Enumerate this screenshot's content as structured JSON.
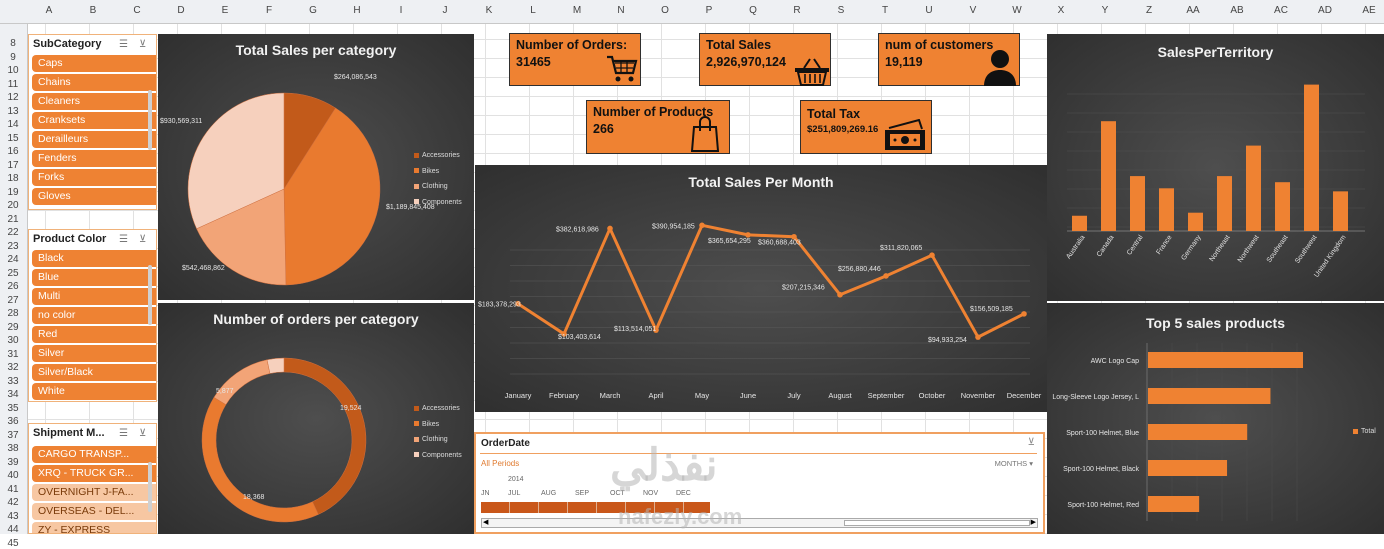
{
  "sheet": {
    "columns": [
      "A",
      "B",
      "C",
      "D",
      "E",
      "F",
      "G",
      "H",
      "I",
      "J",
      "K",
      "L",
      "M",
      "N",
      "O",
      "P",
      "Q",
      "R",
      "S",
      "T",
      "U",
      "V",
      "W",
      "X",
      "Y",
      "Z",
      "AA",
      "AB",
      "AC",
      "AD",
      "AE"
    ],
    "rows": [
      "8",
      "9",
      "10",
      "11",
      "12",
      "13",
      "14",
      "15",
      "16",
      "17",
      "18",
      "19",
      "20",
      "21",
      "22",
      "23",
      "24",
      "25",
      "26",
      "27",
      "28",
      "29",
      "30",
      "31",
      "32",
      "33",
      "34",
      "35",
      "36",
      "37",
      "38",
      "39",
      "40",
      "41",
      "42",
      "43",
      "44",
      "45"
    ]
  },
  "slicers": {
    "subcategory": {
      "title": "SubCategory",
      "items": [
        "Caps",
        "Chains",
        "Cleaners",
        "Cranksets",
        "Derailleurs",
        "Fenders",
        "Forks",
        "Gloves"
      ]
    },
    "product_color": {
      "title": "Product Color",
      "items": [
        "Black",
        "Blue",
        "Multi",
        "no color",
        "Red",
        "Silver",
        "Silver/Black",
        "White"
      ]
    },
    "shipment": {
      "title": "Shipment M...",
      "items": [
        "CARGO TRANSP...",
        "XRQ - TRUCK GR...",
        "OVERNIGHT J-FA...",
        "OVERSEAS - DEL...",
        "ZY - EXPRESS"
      ]
    }
  },
  "kpis": {
    "orders": {
      "title": "Number of Orders:",
      "value": "31465",
      "icon": "shopping-cart-icon"
    },
    "sales": {
      "title": "Total Sales",
      "value": "2,926,970,124",
      "icon": "basket-icon"
    },
    "customers": {
      "title": "num of customers",
      "value": "19,119",
      "icon": "person-icon"
    },
    "products": {
      "title": "Number of Products",
      "value": "266",
      "icon": "shopping-bag-icon"
    },
    "tax": {
      "title": "Total Tax",
      "value": "$251,809,269.16",
      "icon": "money-icon"
    }
  },
  "legend_categories": [
    "Accessories",
    "Bikes",
    "Clothing",
    "Components"
  ],
  "colors": {
    "accent": "#ef8232",
    "dark_bg": "#3a3a3a",
    "slice1": "#c25a1a",
    "slice2": "#e97a2f",
    "slice3": "#f2a477",
    "slice4": "#f6d0bd"
  },
  "chart_data": [
    {
      "type": "pie",
      "title": "Total Sales per category",
      "categories": [
        "Accessories",
        "Bikes",
        "Clothing",
        "Components"
      ],
      "values": [
        264086543,
        1189845408,
        542468862,
        930569311
      ],
      "labels": [
        "$264,086,543",
        "$1,189,845,408",
        "$542,468,862",
        "$930,569,311"
      ]
    },
    {
      "type": "pie",
      "title": "Number of orders per category",
      "categories": [
        "Accessories",
        "Bikes",
        "Clothing",
        "Components"
      ],
      "values": [
        19524,
        18368,
        5877,
        1500
      ],
      "labels": [
        "19,524",
        "18,368",
        "5,877",
        ""
      ]
    },
    {
      "type": "line",
      "title": "Total Sales Per Month",
      "categories": [
        "January",
        "February",
        "March",
        "April",
        "May",
        "June",
        "July",
        "August",
        "September",
        "October",
        "November",
        "December"
      ],
      "values": [
        183378293,
        103403614,
        382618986,
        113514051,
        390954185,
        365654295,
        360688403,
        207215346,
        256880446,
        311820065,
        94933254,
        156509185
      ],
      "labels": [
        "$183,378,293",
        "$103,403,614",
        "$382,618,986",
        "$113,514,051",
        "$390,954,185",
        "$365,654,295",
        "$360,688,403",
        "$207,215,346",
        "$256,880,446",
        "$311,820,065",
        "$94,933,254",
        "$156,509,185"
      ]
    },
    {
      "type": "bar",
      "title": "SalesPerTerritory",
      "categories": [
        "Australia",
        "Canada",
        "Central",
        "France",
        "Germany",
        "Northeast",
        "Northwest",
        "Southeast",
        "Southwest",
        "United Kingdom"
      ],
      "values": [
        5,
        36,
        18,
        14,
        6,
        18,
        28,
        16,
        48,
        13
      ]
    },
    {
      "type": "bar",
      "title": "Top 5 sales products",
      "categories": [
        "AWC Logo Cap",
        "Long-Sleeve Logo Jersey, L",
        "Sport-100 Helmet, Blue",
        "Sport-100 Helmet, Black",
        "Sport-100 Helmet, Red"
      ],
      "values": [
        100,
        79,
        64,
        51,
        33
      ],
      "legend": "Total"
    }
  ],
  "timeline": {
    "title": "OrderDate",
    "period": "All Periods",
    "level": "MONTHS",
    "year": "2014",
    "months": [
      "JN",
      "JUL",
      "AUG",
      "SEP",
      "OCT",
      "NOV",
      "DEC"
    ]
  },
  "watermark": {
    "arabic": "نفذلي",
    "latin": "nafezly.com"
  }
}
